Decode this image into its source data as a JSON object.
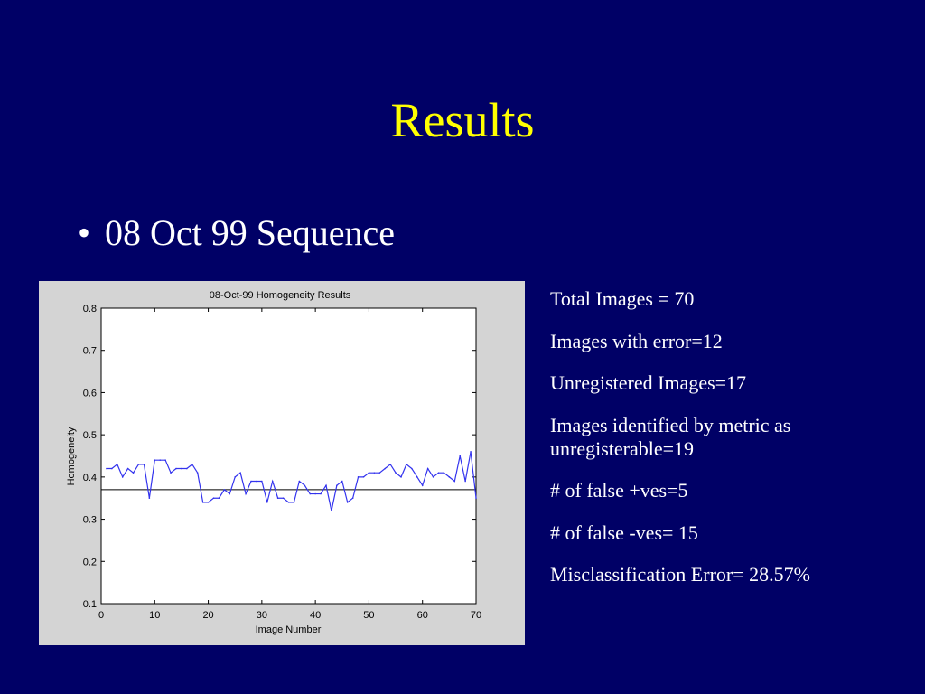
{
  "slide": {
    "title": "Results",
    "bullet": "08 Oct 99 Sequence",
    "stats": [
      "Total Images = 70",
      "Images with error=12",
      "Unregistered Images=17",
      "Images identified by metric as unregisterable=19",
      "# of false +ves=5",
      "# of false -ves= 15",
      "Misclassification Error= 28.57%"
    ]
  },
  "colors": {
    "background": "#000066",
    "title": "#ffff00",
    "panel": "#d4d4d4",
    "series": "#3333ee",
    "threshold": "#000000"
  },
  "chart_data": {
    "type": "line",
    "title": "08-Oct-99 Homogeneity Results",
    "xlabel": "Image Number",
    "ylabel": "Homogeneity",
    "xlim": [
      0,
      70
    ],
    "ylim": [
      0.1,
      0.8
    ],
    "xticks": [
      0,
      10,
      20,
      30,
      40,
      50,
      60,
      70
    ],
    "yticks": [
      0.1,
      0.2,
      0.3,
      0.4,
      0.5,
      0.6,
      0.7,
      0.8
    ],
    "grid": false,
    "threshold": 0.37,
    "x": [
      1,
      2,
      3,
      4,
      5,
      6,
      7,
      8,
      9,
      10,
      11,
      12,
      13,
      14,
      15,
      16,
      17,
      18,
      19,
      20,
      21,
      22,
      23,
      24,
      25,
      26,
      27,
      28,
      29,
      30,
      31,
      32,
      33,
      34,
      35,
      36,
      37,
      38,
      39,
      40,
      41,
      42,
      43,
      44,
      45,
      46,
      47,
      48,
      49,
      50,
      51,
      52,
      53,
      54,
      55,
      56,
      57,
      58,
      59,
      60,
      61,
      62,
      63,
      64,
      65,
      66,
      67,
      68,
      69,
      70
    ],
    "values": [
      0.42,
      0.42,
      0.43,
      0.4,
      0.42,
      0.41,
      0.43,
      0.43,
      0.35,
      0.44,
      0.44,
      0.44,
      0.41,
      0.42,
      0.42,
      0.42,
      0.43,
      0.41,
      0.34,
      0.34,
      0.35,
      0.35,
      0.37,
      0.36,
      0.4,
      0.41,
      0.36,
      0.39,
      0.39,
      0.39,
      0.34,
      0.39,
      0.35,
      0.35,
      0.34,
      0.34,
      0.39,
      0.38,
      0.36,
      0.36,
      0.36,
      0.38,
      0.32,
      0.38,
      0.39,
      0.34,
      0.35,
      0.4,
      0.4,
      0.41,
      0.41,
      0.41,
      0.42,
      0.43,
      0.41,
      0.4,
      0.43,
      0.42,
      0.4,
      0.38,
      0.42,
      0.4,
      0.41,
      0.41,
      0.4,
      0.39,
      0.45,
      0.39,
      0.46,
      0.35
    ]
  }
}
